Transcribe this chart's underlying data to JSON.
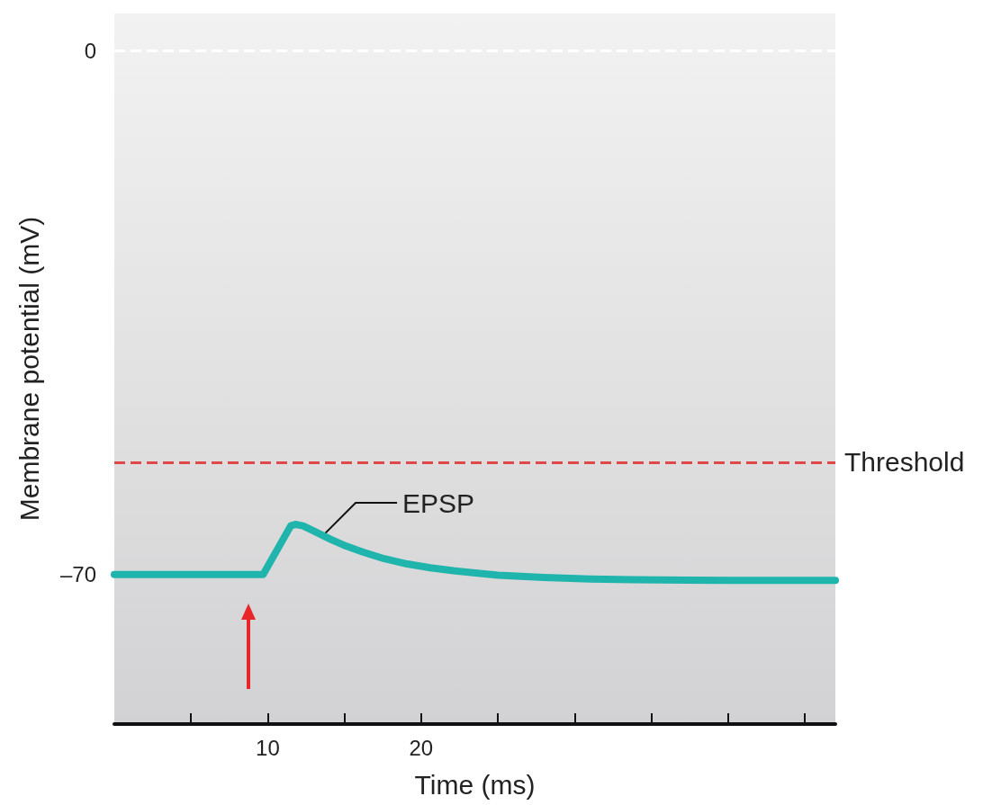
{
  "chart_data": {
    "type": "line",
    "xlabel": "Time (ms)",
    "ylabel": "Membrane potential (mV)",
    "series": [
      {
        "color": "#1fb5ad",
        "x": [
          0,
          9.7,
          11.5,
          11.8,
          12.3,
          13,
          14.1,
          15.1,
          16.2,
          17.6,
          19.1,
          20.6,
          22.1,
          25,
          28,
          31,
          33.8,
          40,
          47
        ],
        "values": [
          -70,
          -70,
          -63.5,
          -63.3,
          -63.5,
          -64.2,
          -65.3,
          -66.2,
          -67,
          -67.9,
          -68.6,
          -69.1,
          -69.5,
          -70.1,
          -70.4,
          -70.6,
          -70.7,
          -70.8,
          -70.8
        ]
      }
    ],
    "xlim": [
      0,
      47
    ],
    "xticks": [
      {
        "value": 5,
        "label": null
      },
      10,
      {
        "value": 15,
        "label": null
      },
      20,
      {
        "value": 25,
        "label": null
      },
      {
        "value": 30,
        "label": null
      },
      {
        "value": 35,
        "label": null
      },
      {
        "value": 40,
        "label": null
      },
      {
        "value": 45,
        "label": null
      }
    ],
    "ylim": [
      -90,
      5
    ],
    "yticks": [
      {
        "value": -70,
        "label": "–70"
      },
      0
    ],
    "ref_lines": [
      {
        "axis": "y",
        "value": 0,
        "label": null,
        "color": "#ffffff",
        "line_style": "dashed"
      },
      {
        "axis": "y",
        "value": -55,
        "label": "Threshold",
        "color": "#e04848",
        "line_style": "dashed"
      }
    ],
    "annotations": [
      {
        "text": "EPSP",
        "x": 13.5,
        "y": -65
      }
    ],
    "grid": false,
    "line_style": "solid"
  }
}
